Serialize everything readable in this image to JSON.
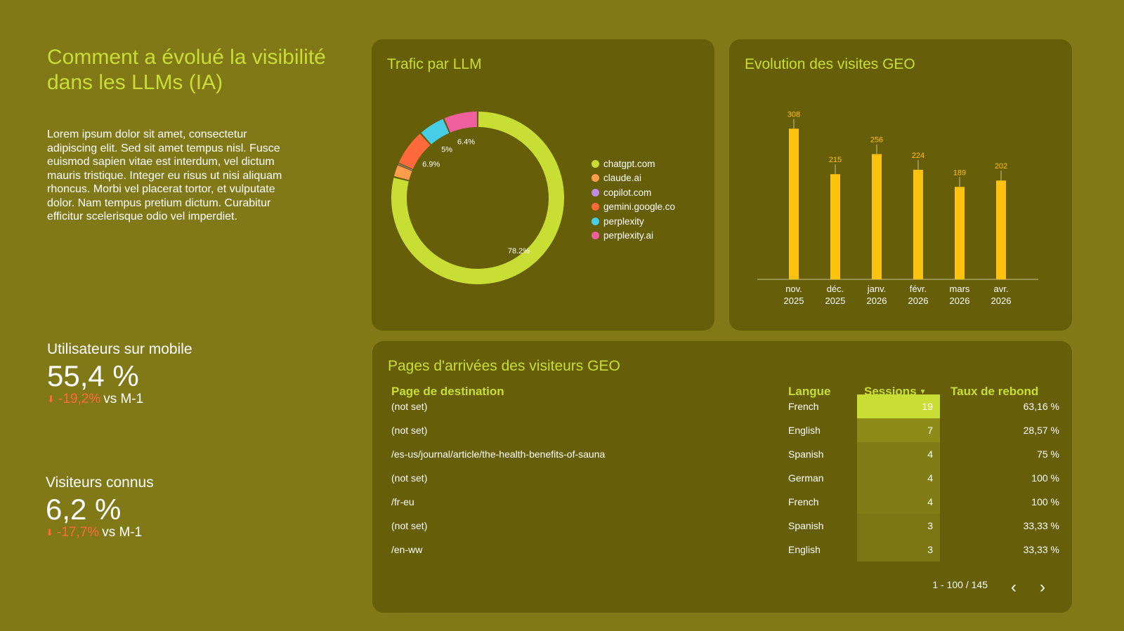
{
  "hero": {
    "title": "Comment a évolué la visibilité dans les LLMs (IA)",
    "text": "Lorem ipsum dolor sit amet, consectetur adipiscing elit. Sed sit amet tempus nisl. Fusce euismod sapien vitae est interdum, vel dictum mauris tristique. Integer eu risus ut nisi aliquam rhoncus. Morbi vel placerat tortor, et vulputate dolor. Nam tempus pretium dictum. Curabitur efficitur scelerisque odio vel imperdiet."
  },
  "kpis": [
    {
      "label": "Utilisateurs sur mobile",
      "value": "55,4 %",
      "delta": "-19,2%",
      "suffix": "vs M-1"
    },
    {
      "label": "Visiteurs connus",
      "value": "6,2 %",
      "delta": "-17,7%",
      "suffix": "vs M-1"
    }
  ],
  "llm_card": {
    "title": "Trafic par LLM"
  },
  "visits_card": {
    "title": "Evolution des visites GEO"
  },
  "pages_card": {
    "title": "Pages d'arrivées des visiteurs GEO",
    "headers": {
      "page": "Page de destination",
      "lang": "Langue",
      "sessions": "Sessions",
      "bounce": "Taux de rebond"
    },
    "rows": [
      {
        "page": "(not set)",
        "lang": "French",
        "sessions": "19",
        "bounce": "63,16 %"
      },
      {
        "page": "(not set)",
        "lang": "English",
        "sessions": "7",
        "bounce": "28,57 %"
      },
      {
        "page": "/es-us/journal/article/the-health-benefits-of-sauna",
        "lang": "Spanish",
        "sessions": "4",
        "bounce": "75 %"
      },
      {
        "page": "(not set)",
        "lang": "German",
        "sessions": "4",
        "bounce": "100 %"
      },
      {
        "page": "/fr-eu",
        "lang": "French",
        "sessions": "4",
        "bounce": "100 %"
      },
      {
        "page": "(not set)",
        "lang": "Spanish",
        "sessions": "3",
        "bounce": "33,33 %"
      },
      {
        "page": "/en-ww",
        "lang": "English",
        "sessions": "3",
        "bounce": "33,33 %"
      }
    ],
    "pagination": "1 - 100 / 145"
  },
  "colors": {
    "background": "#817818",
    "card": "#665e08",
    "accent": "#c9de34",
    "bar": "#ffc20e",
    "negative": "#ff6a3d"
  },
  "icons": {
    "delta": "arrow-down-icon",
    "sort": "sort-desc-icon",
    "prev": "chevron-left-icon",
    "next": "chevron-right-icon"
  },
  "chart_data": [
    {
      "type": "pie",
      "title": "Trafic par LLM",
      "donut": true,
      "legend_position": "right",
      "categories": [
        "chatgpt.com",
        "claude.ai",
        "copilot.com",
        "gemini.google.co",
        "perplexity",
        "perplexity.ai"
      ],
      "values": [
        78.2,
        2.4,
        0.2,
        6.9,
        5.0,
        6.4
      ],
      "labels": [
        "78.2%",
        "",
        "",
        "6.9%",
        "5%",
        "6.4%"
      ],
      "colors": [
        "#c9de34",
        "#ff9d4d",
        "#c08be3",
        "#ff6a3d",
        "#48cde6",
        "#f0609e"
      ]
    },
    {
      "type": "bar",
      "title": "Evolution des visites GEO",
      "categories": [
        "nov. 2025",
        "déc. 2025",
        "janv. 2026",
        "févr. 2026",
        "mars 2026",
        "avr. 2026"
      ],
      "values": [
        308,
        215,
        256,
        224,
        189,
        202
      ],
      "ylim": [
        0,
        330
      ],
      "grid": false,
      "color": "#ffc20e"
    }
  ]
}
